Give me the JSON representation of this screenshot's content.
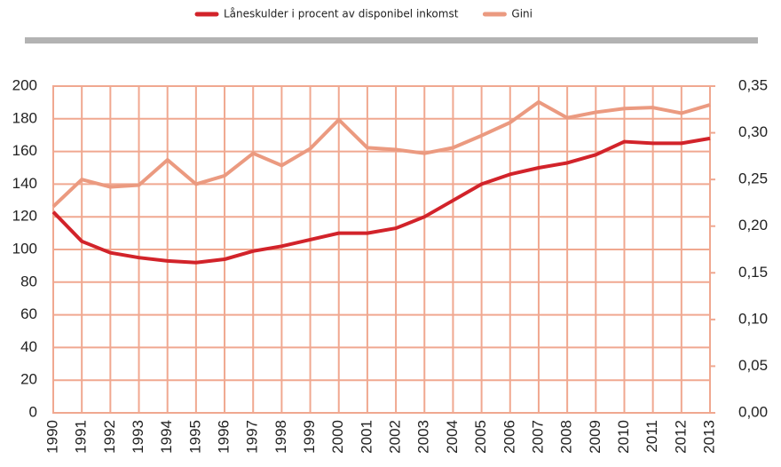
{
  "chart_data": {
    "type": "line",
    "categories": [
      "1990",
      "1991",
      "1992",
      "1993",
      "1994",
      "1995",
      "1996",
      "1997",
      "1998",
      "1999",
      "2000",
      "2001",
      "2002",
      "2003",
      "2004",
      "2005",
      "2006",
      "2007",
      "2008",
      "2009",
      "2010",
      "2011",
      "2012",
      "2013"
    ],
    "series": [
      {
        "name": "Låneskulder i procent av disponibel inkomst",
        "color": "#d2232a",
        "axis": "y",
        "values": [
          123,
          105,
          98,
          95,
          93,
          92,
          94,
          99,
          102,
          106,
          110,
          110,
          113,
          120,
          130,
          140,
          146,
          150,
          153,
          158,
          166,
          165,
          165,
          168
        ]
      },
      {
        "name": "Gini",
        "color": "#eb9a80",
        "axis": "y2",
        "values": [
          0.221,
          0.25,
          0.242,
          0.244,
          0.271,
          0.245,
          0.254,
          0.278,
          0.265,
          0.283,
          0.314,
          0.284,
          0.282,
          0.278,
          0.284,
          0.297,
          0.311,
          0.333,
          0.316,
          0.322,
          0.326,
          0.327,
          0.321,
          0.33
        ]
      }
    ],
    "ylim": [
      0,
      200
    ],
    "yticks": [
      0,
      20,
      40,
      60,
      80,
      100,
      120,
      140,
      160,
      180,
      200
    ],
    "y2lim": [
      0,
      0.35
    ],
    "y2ticks": [
      {
        "value": 0,
        "label": "0,00"
      },
      {
        "value": 0.05,
        "label": "0,05"
      },
      {
        "value": 0.1,
        "label": "0,10"
      },
      {
        "value": 0.15,
        "label": "0,15"
      },
      {
        "value": 0.2,
        "label": "0,20"
      },
      {
        "value": 0.25,
        "label": "0,25"
      },
      {
        "value": 0.3,
        "label": "0,30"
      },
      {
        "value": 0.35,
        "label": "0,35"
      }
    ],
    "grid": true,
    "grid_color": "#f0a890",
    "legend": "top"
  }
}
